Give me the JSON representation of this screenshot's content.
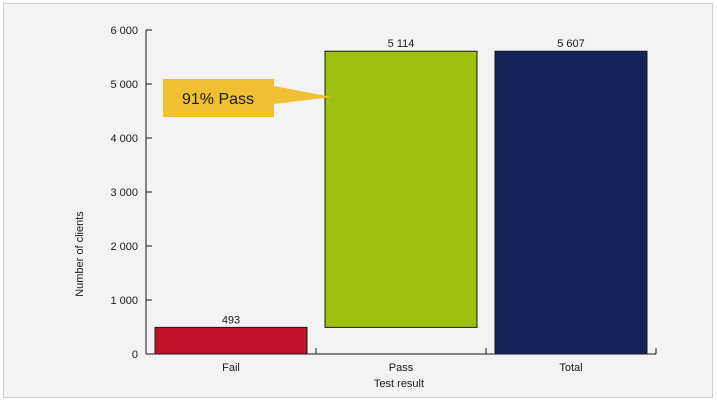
{
  "chart_data": {
    "type": "bar",
    "categories": [
      "Fail",
      "Pass",
      "Total"
    ],
    "series": [
      {
        "values": [
          493,
          5114,
          5607
        ],
        "labels": [
          "493",
          "5 114",
          "5 607"
        ],
        "colors": [
          "#c0102a",
          "#9ebf0e",
          "#14235a"
        ],
        "bases": [
          0,
          493,
          0
        ]
      }
    ],
    "xlabel": "Test result",
    "ylabel": "Number of clients",
    "ylim": [
      0,
      6000
    ],
    "yticks": [
      0,
      1000,
      2000,
      3000,
      4000,
      5000,
      6000
    ],
    "ytick_labels": [
      "0",
      "1 000",
      "2 000",
      "3 000",
      "4 000",
      "5 000",
      "6 000"
    ],
    "grid": false,
    "annotation": {
      "text": "91% Pass",
      "color": "#f0c032",
      "points_to": "Pass"
    }
  }
}
